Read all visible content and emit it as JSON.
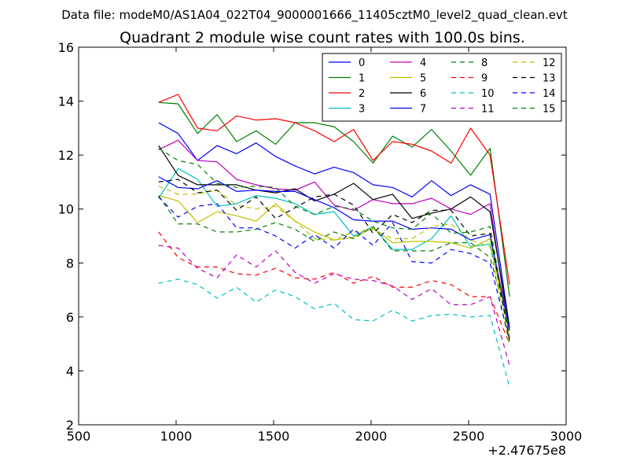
{
  "chart_data": {
    "type": "line",
    "suptitle": "Data file: modeM0/AS1A04_022T04_9000001666_11405cztM0_level2_quad_clean.evt",
    "title": "Quadrant 2 module wise count rates with 100.0s bins.",
    "xlabel": "",
    "ylabel": "",
    "x_offset_label": "+2.47675e8",
    "xlim": [
      500,
      3000
    ],
    "ylim": [
      2,
      16
    ],
    "xticks": [
      "500",
      "1000",
      "1500",
      "2000",
      "2500",
      "3000"
    ],
    "yticks": [
      "2",
      "4",
      "6",
      "8",
      "10",
      "12",
      "14",
      "16"
    ],
    "legend_position": "top-right",
    "x": [
      910,
      1010,
      1110,
      1210,
      1310,
      1410,
      1510,
      1610,
      1710,
      1810,
      1910,
      2010,
      2110,
      2210,
      2310,
      2410,
      2510,
      2610,
      2710
    ],
    "series": [
      {
        "name": "0",
        "color": "#0000ff",
        "dash": "solid",
        "values": [
          13.2,
          12.8,
          11.8,
          12.35,
          12.05,
          12.45,
          11.95,
          11.6,
          11.3,
          11.55,
          11.35,
          10.9,
          10.8,
          10.45,
          11.05,
          10.5,
          10.9,
          10.55,
          5.6
        ]
      },
      {
        "name": "1",
        "color": "#008000",
        "dash": "solid",
        "values": [
          13.95,
          13.9,
          12.8,
          13.5,
          12.5,
          12.9,
          12.4,
          13.2,
          13.2,
          13.05,
          12.5,
          11.7,
          12.7,
          12.3,
          12.95,
          12.15,
          11.25,
          12.25,
          6.75
        ]
      },
      {
        "name": "2",
        "color": "#ff0000",
        "dash": "solid",
        "values": [
          13.95,
          14.25,
          13.0,
          12.9,
          13.45,
          13.3,
          13.35,
          13.2,
          12.9,
          12.5,
          12.95,
          11.8,
          12.5,
          12.4,
          12.15,
          11.7,
          13.0,
          12.0,
          7.2
        ]
      },
      {
        "name": "3",
        "color": "#00bfbf",
        "dash": "solid",
        "values": [
          10.4,
          11.5,
          11.1,
          10.1,
          10.2,
          10.5,
          10.4,
          10.2,
          9.8,
          9.9,
          9.0,
          9.35,
          8.5,
          8.5,
          8.9,
          9.75,
          8.6,
          8.7,
          5.6
        ]
      },
      {
        "name": "4",
        "color": "#bf00bf",
        "dash": "solid",
        "values": [
          12.2,
          12.55,
          11.8,
          11.75,
          11.1,
          10.9,
          10.75,
          10.7,
          11.0,
          10.15,
          9.95,
          10.35,
          10.2,
          10.2,
          10.4,
          10.0,
          9.8,
          10.2,
          5.2
        ]
      },
      {
        "name": "5",
        "color": "#bfbf00",
        "dash": "solid",
        "values": [
          10.5,
          10.3,
          9.5,
          9.9,
          9.75,
          9.55,
          10.2,
          9.55,
          9.15,
          8.85,
          8.95,
          9.3,
          8.75,
          8.8,
          8.8,
          8.75,
          8.55,
          8.9,
          5.25
        ]
      },
      {
        "name": "6",
        "color": "#000000",
        "dash": "solid",
        "values": [
          12.35,
          11.25,
          10.9,
          10.9,
          10.9,
          10.7,
          10.6,
          10.75,
          10.3,
          10.55,
          10.95,
          10.35,
          10.55,
          9.65,
          9.85,
          10.0,
          10.45,
          9.9,
          5.6
        ]
      },
      {
        "name": "7",
        "color": "#0000ff",
        "dash": "solid",
        "values": [
          11.2,
          10.8,
          10.75,
          11.05,
          10.65,
          10.7,
          10.65,
          10.65,
          10.35,
          10.05,
          9.6,
          9.55,
          9.55,
          9.25,
          9.3,
          9.25,
          8.85,
          9.05,
          5.5
        ]
      },
      {
        "name": "8",
        "color": "#008000",
        "dash": "dashed",
        "values": [
          10.5,
          9.45,
          9.45,
          9.15,
          9.15,
          9.25,
          9.5,
          9.25,
          8.8,
          9.15,
          8.9,
          9.35,
          8.45,
          8.45,
          8.45,
          8.75,
          8.75,
          8.2,
          5.6
        ]
      },
      {
        "name": "9",
        "color": "#ff0000",
        "dash": "dashed",
        "values": [
          9.15,
          8.2,
          7.85,
          7.85,
          7.6,
          7.55,
          7.8,
          7.45,
          7.4,
          7.65,
          7.25,
          7.5,
          7.1,
          7.1,
          7.35,
          7.2,
          6.75,
          6.75,
          5.0
        ]
      },
      {
        "name": "10",
        "color": "#00bfbf",
        "dash": "dashed",
        "values": [
          7.25,
          7.4,
          7.2,
          6.7,
          7.1,
          6.55,
          7.0,
          6.75,
          6.3,
          6.5,
          5.9,
          5.85,
          6.25,
          5.85,
          6.05,
          6.1,
          6.0,
          6.05,
          3.4
        ]
      },
      {
        "name": "11",
        "color": "#bf00bf",
        "dash": "dashed",
        "values": [
          8.65,
          8.55,
          7.8,
          7.45,
          8.3,
          7.85,
          8.45,
          7.65,
          7.25,
          7.6,
          7.4,
          7.35,
          7.15,
          6.65,
          7.05,
          6.45,
          6.45,
          6.75,
          4.2
        ]
      },
      {
        "name": "12",
        "color": "#bfbf00",
        "dash": "dashed",
        "values": [
          10.85,
          10.55,
          10.55,
          10.7,
          10.15,
          10.0,
          10.1,
          9.55,
          8.9,
          8.85,
          9.15,
          9.25,
          8.9,
          8.9,
          9.35,
          9.45,
          8.85,
          8.6,
          4.9
        ]
      },
      {
        "name": "13",
        "color": "#000000",
        "dash": "dashed",
        "values": [
          11.0,
          11.1,
          10.6,
          10.7,
          9.95,
          10.45,
          9.65,
          10.05,
          10.45,
          10.55,
          10.15,
          9.1,
          9.8,
          9.5,
          9.95,
          9.95,
          9.0,
          9.1,
          5.1
        ]
      },
      {
        "name": "14",
        "color": "#0000ff",
        "dash": "dashed",
        "values": [
          10.45,
          9.7,
          10.1,
          10.2,
          9.3,
          9.3,
          9.0,
          8.55,
          9.05,
          8.55,
          9.25,
          8.65,
          9.5,
          8.05,
          8.0,
          8.5,
          8.35,
          8.0,
          5.1
        ]
      },
      {
        "name": "15",
        "color": "#008000",
        "dash": "dashed",
        "values": [
          12.25,
          11.8,
          11.65,
          10.95,
          10.8,
          10.85,
          10.8,
          10.1,
          9.8,
          10.1,
          10.0,
          9.55,
          9.3,
          9.25,
          9.85,
          9.1,
          9.15,
          9.35,
          5.2
        ]
      }
    ]
  }
}
